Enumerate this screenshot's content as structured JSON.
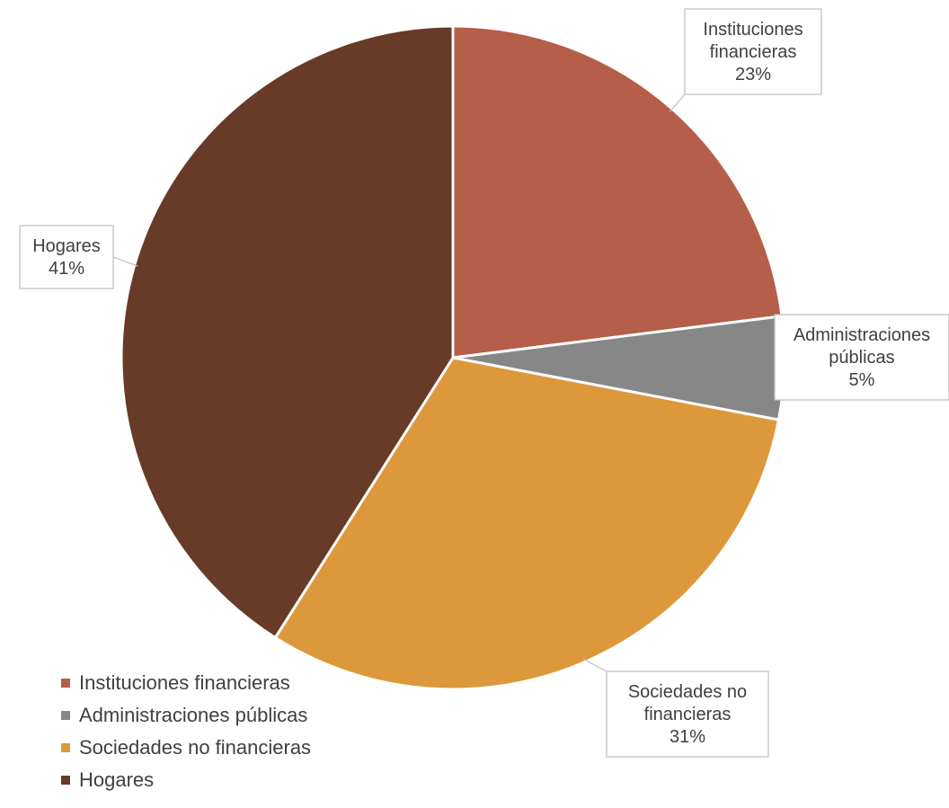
{
  "chart_data": {
    "type": "pie",
    "categories": [
      "Instituciones financieras",
      "Administraciones públicas",
      "Sociedades no financieras",
      "Hogares"
    ],
    "values": [
      23,
      5,
      31,
      41
    ],
    "colors": [
      "#B55E49",
      "#878787",
      "#DC983A",
      "#673B28"
    ],
    "data_labels": [
      {
        "lines": [
          "Instituciones",
          "financieras"
        ],
        "value": "23%"
      },
      {
        "lines": [
          "Administraciones",
          "públicas"
        ],
        "value": "5%"
      },
      {
        "lines": [
          "Sociedades no",
          "financieras"
        ],
        "value": "31%"
      },
      {
        "lines": [
          "Hogares"
        ],
        "value": "41%"
      }
    ],
    "legend": {
      "position": "bottom-left",
      "items": [
        "Instituciones financieras",
        "Administraciones públicas",
        "Sociedades no financieras",
        "Hogares"
      ]
    },
    "start_angle": "12 o'clock",
    "direction": "clockwise"
  }
}
